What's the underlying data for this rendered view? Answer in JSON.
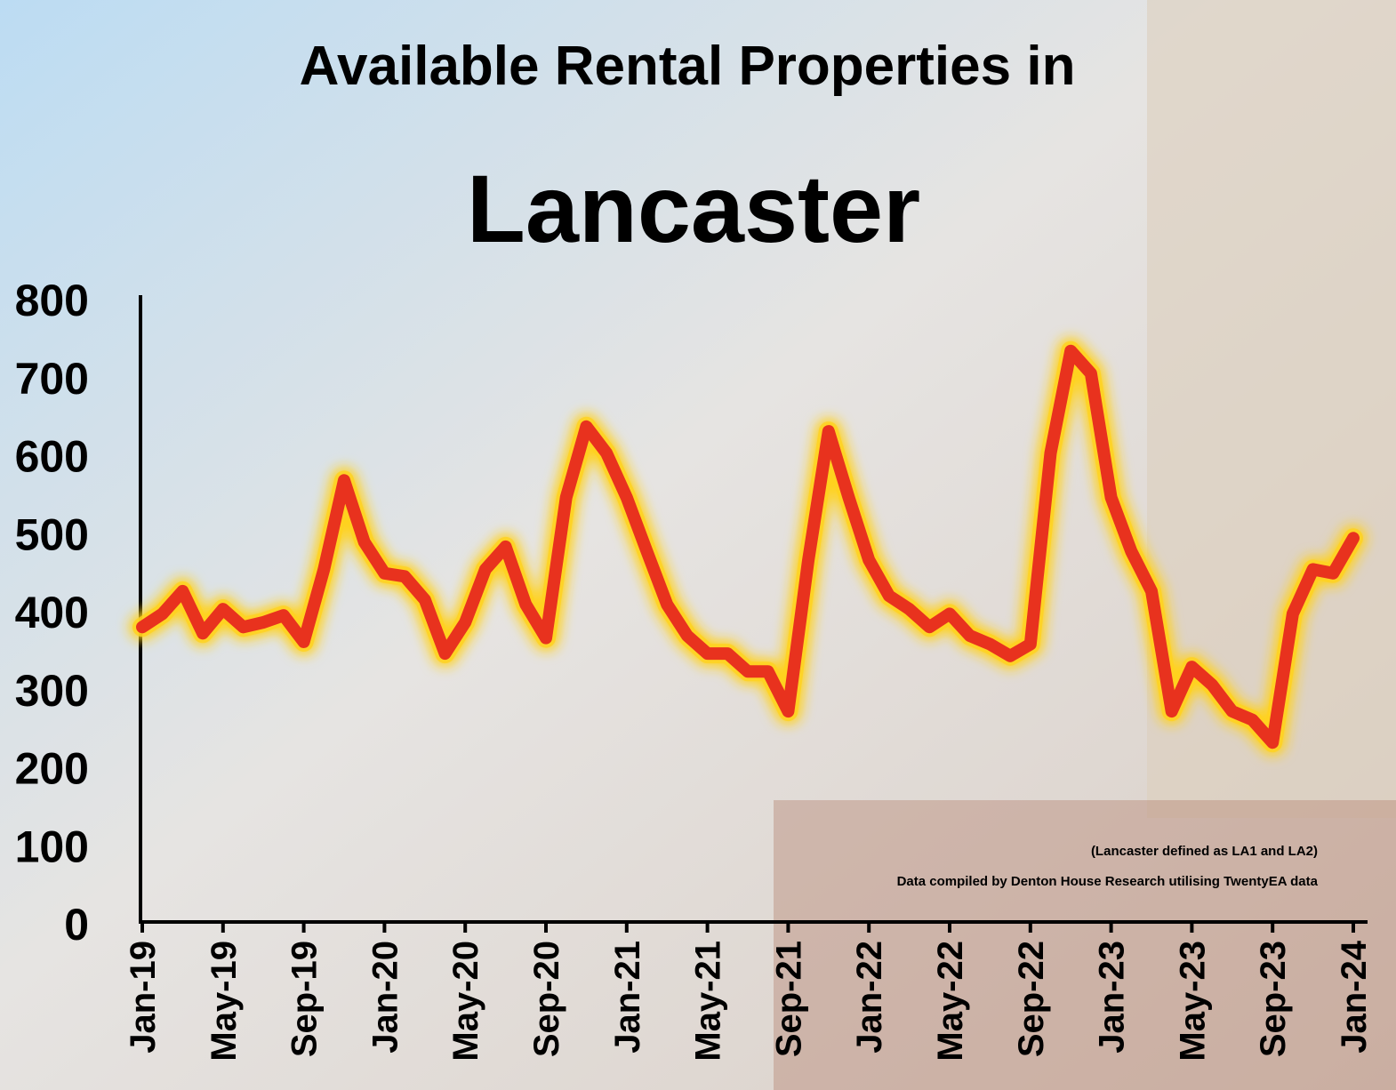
{
  "chart_data": {
    "type": "line",
    "title": "Available Rental Properties in",
    "subtitle": "Lancaster",
    "annotations": [
      "(Lancaster defined as LA1 and LA2)",
      "Data compiled by Denton House Research utilising TwentyEA data"
    ],
    "categories": [
      "Jan-19",
      null,
      null,
      null,
      "May-19",
      null,
      null,
      null,
      "Sep-19",
      null,
      null,
      null,
      "Jan-20",
      null,
      null,
      null,
      "May-20",
      null,
      null,
      null,
      "Sep-20",
      null,
      null,
      null,
      "Jan-21",
      null,
      null,
      null,
      "May-21",
      null,
      null,
      null,
      "Sep-21",
      null,
      null,
      null,
      "Jan-22",
      null,
      null,
      null,
      "May-22",
      null,
      null,
      null,
      "Sep-22",
      null,
      null,
      null,
      "Jan-23",
      null,
      null,
      null,
      "May-23",
      null,
      null,
      null,
      "Sep-23",
      null,
      null,
      null,
      "Jan-24"
    ],
    "values": [
      378,
      395,
      424,
      370,
      401,
      378,
      384,
      393,
      359,
      452,
      566,
      487,
      447,
      443,
      413,
      344,
      384,
      452,
      481,
      407,
      364,
      544,
      635,
      601,
      544,
      475,
      407,
      367,
      344,
      344,
      321,
      321,
      270,
      464,
      629,
      544,
      464,
      418,
      401,
      378,
      395,
      367,
      356,
      341,
      356,
      601,
      732,
      703,
      544,
      475,
      424,
      270,
      327,
      304,
      270,
      259,
      230,
      395,
      452,
      447,
      492
    ],
    "color": "#e8321e",
    "glow_color": "#ffd21f",
    "ylim": [
      0,
      800
    ],
    "yticks": [
      0,
      100,
      200,
      300,
      400,
      500,
      600,
      700,
      800
    ],
    "grid": false
  }
}
